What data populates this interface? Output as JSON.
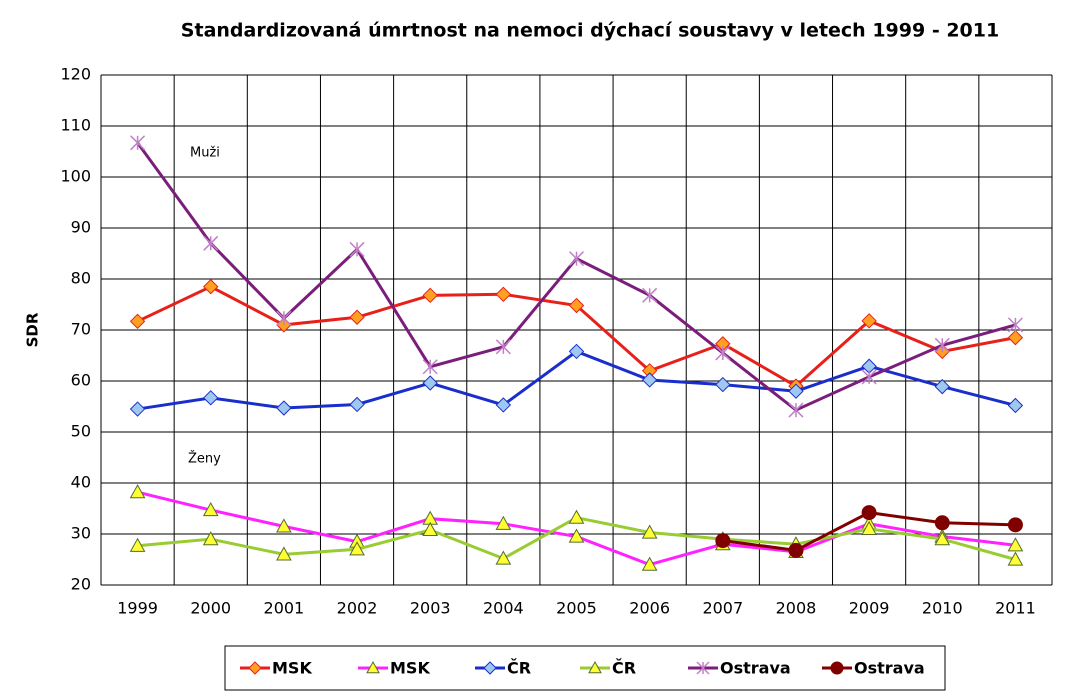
{
  "chart_data": {
    "type": "line",
    "title": "Standardizovaná úmrtnost na nemoci dýchací soustavy v letech 1999 - 2011",
    "y_label": "SDR",
    "annotations": [
      "Muži",
      "Ženy"
    ],
    "categories": [
      "1999",
      "2000",
      "2001",
      "2002",
      "2003",
      "2004",
      "2005",
      "2006",
      "2007",
      "2008",
      "2009",
      "2010",
      "2011"
    ],
    "ylim": [
      20,
      120
    ],
    "yticks": [
      20,
      30,
      40,
      50,
      60,
      70,
      80,
      90,
      100,
      110,
      120
    ],
    "grid": true,
    "legend": "bottom",
    "series": [
      {
        "name": "MSK",
        "color": "#e8201a",
        "marker": "diamond",
        "marker_color": "#ffa020",
        "values": [
          71.7,
          78.5,
          71,
          72.5,
          76.8,
          77,
          74.8,
          62,
          67.3,
          59,
          71.8,
          65.8,
          68.5
        ]
      },
      {
        "name": "MSK",
        "color": "#ff22ff",
        "marker": "triangle",
        "marker_color": "#ffff33",
        "values": [
          38.2,
          34.7,
          31.5,
          28.5,
          33,
          32,
          29.5,
          24,
          28,
          26.5,
          32,
          29.5,
          27.8
        ]
      },
      {
        "name": "ČR",
        "color": "#1a2ecc",
        "marker": "diamond",
        "marker_color": "#9ec8f0",
        "values": [
          54.5,
          56.7,
          54.7,
          55.4,
          59.6,
          55.3,
          65.8,
          60.2,
          59.3,
          58,
          62.9,
          58.9,
          55.2
        ]
      },
      {
        "name": "ČR",
        "color": "#99cc33",
        "marker": "triangle",
        "marker_color": "#ffff33",
        "values": [
          27.7,
          29,
          26,
          27,
          30.8,
          25.2,
          33.2,
          30.3,
          29,
          28,
          31,
          29,
          25
        ]
      },
      {
        "name": "Ostrava",
        "color": "#7b1e7b",
        "marker": "star",
        "marker_color": "#c080c8",
        "values": [
          106.7,
          87,
          72.3,
          85.8,
          62.8,
          66.7,
          84,
          76.8,
          65.5,
          54.3,
          60.8,
          67,
          71
        ]
      },
      {
        "name": "Ostrava",
        "color": "#800000",
        "marker": "circle",
        "marker_color": "#800000",
        "values": [
          null,
          null,
          null,
          null,
          null,
          null,
          null,
          null,
          28.7,
          26.8,
          34.2,
          32.2,
          31.8
        ]
      }
    ]
  }
}
